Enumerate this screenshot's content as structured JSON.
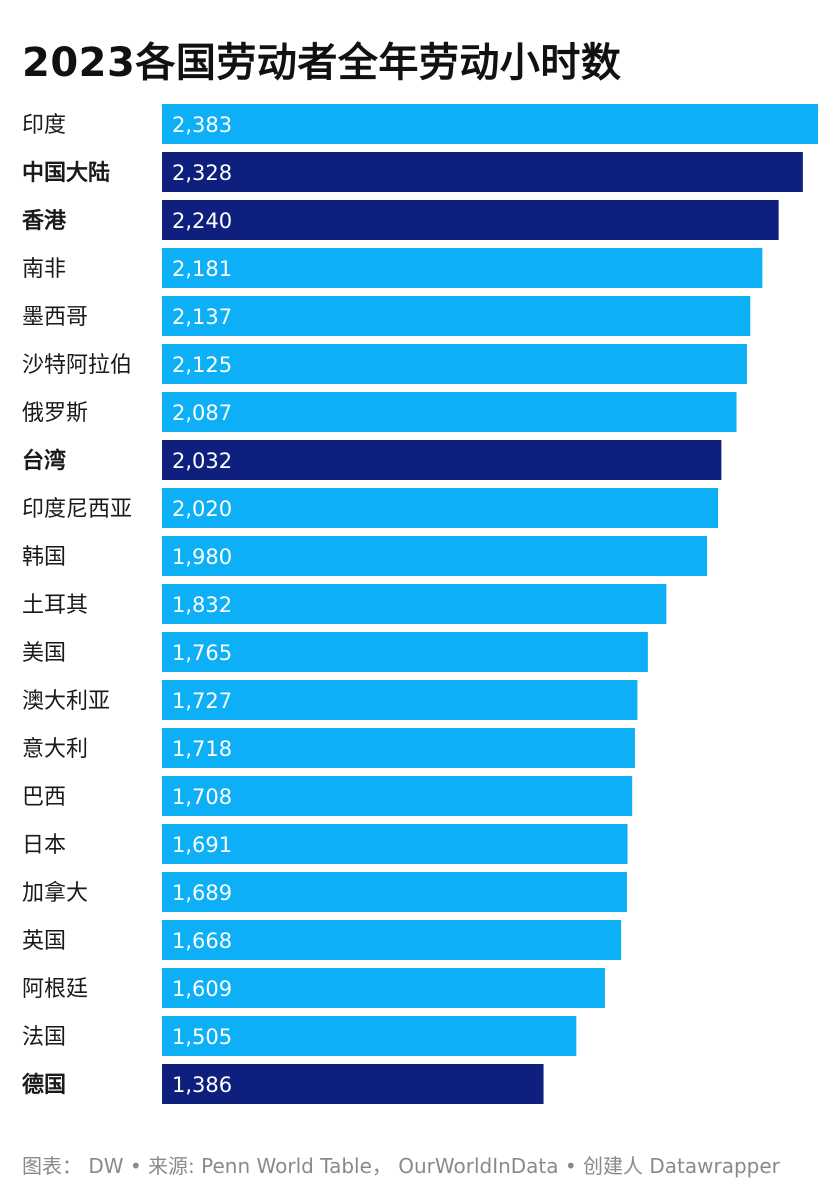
{
  "title": "2023各国劳动者全年劳动小时数",
  "footer": "图表： DW • 来源: Penn World Table， OurWorldInData • 创建人 Datawrapper",
  "colors": {
    "default": "#0db0f7",
    "highlight": "#0f1f7e",
    "label_text": "#1a1a1a",
    "value_text": "#ffffff"
  },
  "chart_data": {
    "type": "bar",
    "orientation": "horizontal",
    "categories": [
      "印度",
      "中国大陆",
      "香港",
      "南非",
      "墨西哥",
      "沙特阿拉伯",
      "俄罗斯",
      "台湾",
      "印度尼西亚",
      "韩国",
      "土耳其",
      "美国",
      "澳大利亚",
      "意大利",
      "巴西",
      "日本",
      "加拿大",
      "英国",
      "阿根廷",
      "法国",
      "德国"
    ],
    "values": [
      2383,
      2328,
      2240,
      2181,
      2137,
      2125,
      2087,
      2032,
      2020,
      1980,
      1832,
      1765,
      1727,
      1718,
      1708,
      1691,
      1689,
      1668,
      1609,
      1505,
      1386
    ],
    "value_labels": [
      "2,383",
      "2,328",
      "2,240",
      "2,181",
      "2,137",
      "2,125",
      "2,087",
      "2,032",
      "2,020",
      "1,980",
      "1,832",
      "1,765",
      "1,727",
      "1,718",
      "1,708",
      "1,691",
      "1,689",
      "1,668",
      "1,609",
      "1,505",
      "1,386"
    ],
    "highlighted": [
      "中国大陆",
      "香港",
      "台湾",
      "德国"
    ],
    "xlim": [
      0,
      2383
    ],
    "grid": false,
    "legend": "none"
  }
}
